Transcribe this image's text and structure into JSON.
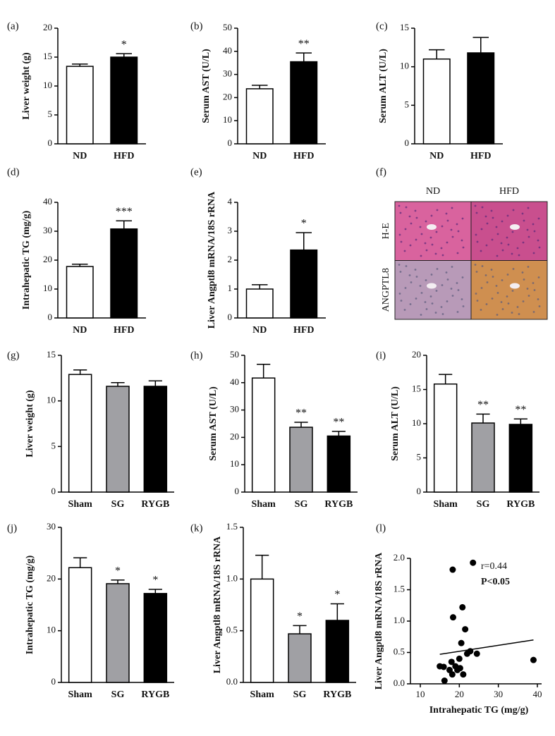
{
  "chart_data": [
    {
      "panel": "(a)",
      "type": "bar",
      "ylabel": "Liver weight (g)",
      "categories": [
        "ND",
        "HFD"
      ],
      "values": [
        13.4,
        15.0
      ],
      "errors": [
        0.4,
        0.6
      ],
      "colors": [
        "#ffffff",
        "#000000"
      ],
      "significance": [
        null,
        "*"
      ],
      "ylim": [
        0,
        20
      ],
      "yticks": [
        0,
        5,
        10,
        15,
        20
      ]
    },
    {
      "panel": "(b)",
      "type": "bar",
      "ylabel": "Serum  AST (U/L)",
      "categories": [
        "ND",
        "HFD"
      ],
      "values": [
        23.8,
        35.5
      ],
      "errors": [
        1.5,
        3.8
      ],
      "colors": [
        "#ffffff",
        "#000000"
      ],
      "significance": [
        null,
        "**"
      ],
      "ylim": [
        0,
        50
      ],
      "yticks": [
        0,
        10,
        20,
        30,
        40,
        50
      ]
    },
    {
      "panel": "(c)",
      "type": "bar",
      "ylabel": "Serum  ALT (U/L)",
      "categories": [
        "ND",
        "HFD"
      ],
      "values": [
        11.0,
        11.8
      ],
      "errors": [
        1.2,
        2.0
      ],
      "colors": [
        "#ffffff",
        "#000000"
      ],
      "significance": [
        null,
        null
      ],
      "ylim": [
        0,
        15
      ],
      "yticks": [
        0,
        5,
        10,
        15
      ]
    },
    {
      "panel": "(d)",
      "type": "bar",
      "ylabel": "Intrahepatic TG (mg/g)",
      "categories": [
        "ND",
        "HFD"
      ],
      "values": [
        17.8,
        30.8
      ],
      "errors": [
        0.8,
        2.8
      ],
      "colors": [
        "#ffffff",
        "#000000"
      ],
      "significance": [
        null,
        "***"
      ],
      "ylim": [
        0,
        40
      ],
      "yticks": [
        0,
        10,
        20,
        30,
        40
      ]
    },
    {
      "panel": "(e)",
      "type": "bar",
      "ylabel": "Liver Angptl8 mRNA/18S rRNA",
      "categories": [
        "ND",
        "HFD"
      ],
      "values": [
        1.0,
        2.35
      ],
      "errors": [
        0.15,
        0.6
      ],
      "colors": [
        "#ffffff",
        "#000000"
      ],
      "significance": [
        null,
        "*"
      ],
      "ylim": [
        0,
        4
      ],
      "yticks": [
        0,
        1,
        2,
        3,
        4
      ]
    },
    {
      "panel": "(f)",
      "type": "image",
      "columns": [
        "ND",
        "HFD"
      ],
      "rows": [
        "H-E",
        "ANGPTL8"
      ]
    },
    {
      "panel": "(g)",
      "type": "bar",
      "ylabel": "Liver weight (g)",
      "categories": [
        "Sham",
        "SG",
        "RYGB"
      ],
      "values": [
        12.9,
        11.6,
        11.6
      ],
      "errors": [
        0.5,
        0.4,
        0.6
      ],
      "colors": [
        "#ffffff",
        "#a0a0a4",
        "#000000"
      ],
      "significance": [
        null,
        null,
        null
      ],
      "ylim": [
        0,
        15
      ],
      "yticks": [
        0,
        5,
        10,
        15
      ]
    },
    {
      "panel": "(h)",
      "type": "bar",
      "ylabel": "Serum  AST (U/L)",
      "categories": [
        "Sham",
        "SG",
        "RYGB"
      ],
      "values": [
        41.7,
        23.7,
        20.5
      ],
      "errors": [
        5.0,
        1.8,
        1.7
      ],
      "colors": [
        "#ffffff",
        "#a0a0a4",
        "#000000"
      ],
      "significance": [
        null,
        "**",
        "**"
      ],
      "ylim": [
        0,
        50
      ],
      "yticks": [
        0,
        10,
        20,
        30,
        40,
        50
      ]
    },
    {
      "panel": "(i)",
      "type": "bar",
      "ylabel": "Serum  ALT (U/L)",
      "categories": [
        "Sham",
        "SG",
        "RYGB"
      ],
      "values": [
        15.8,
        10.1,
        9.9
      ],
      "errors": [
        1.4,
        1.3,
        0.8
      ],
      "colors": [
        "#ffffff",
        "#a0a0a4",
        "#000000"
      ],
      "significance": [
        null,
        "**",
        "**"
      ],
      "ylim": [
        0,
        20
      ],
      "yticks": [
        0,
        5,
        10,
        15,
        20
      ]
    },
    {
      "panel": "(j)",
      "type": "bar",
      "ylabel": "Intrahepatic TG (mg/g)",
      "categories": [
        "Sham",
        "SG",
        "RYGB"
      ],
      "values": [
        22.2,
        19.1,
        17.2
      ],
      "errors": [
        1.9,
        0.7,
        0.8
      ],
      "colors": [
        "#ffffff",
        "#a0a0a4",
        "#000000"
      ],
      "significance": [
        null,
        "*",
        "*"
      ],
      "ylim": [
        0,
        30
      ],
      "yticks": [
        0,
        10,
        20,
        30
      ]
    },
    {
      "panel": "(k)",
      "type": "bar",
      "ylabel": "Liver Angptl8 mRNA/18S rRNA",
      "categories": [
        "Sham",
        "SG",
        "RYGB"
      ],
      "values": [
        1.0,
        0.47,
        0.6
      ],
      "errors": [
        0.23,
        0.08,
        0.16
      ],
      "colors": [
        "#ffffff",
        "#a0a0a4",
        "#000000"
      ],
      "significance": [
        null,
        "*",
        "*"
      ],
      "ylim": [
        0,
        1.5
      ],
      "yticks": [
        {
          "value": 0,
          "label": "0.0"
        },
        {
          "value": 0.5,
          "label": "0.5"
        },
        {
          "value": 1,
          "label": "1.0"
        },
        {
          "value": 1.5,
          "label": "1.5"
        }
      ]
    },
    {
      "panel": "(l)",
      "type": "scatter",
      "ylabel": "Liver Angptl8 mRNA/18S rRNA",
      "xlabel": "Intrahepatic TG (mg/g)",
      "x": [
        15.0,
        16.2,
        17.5,
        18.2,
        18.0,
        18.4,
        19.0,
        19.5,
        20.0,
        20.5,
        20.2,
        21.0,
        21.5,
        22.0,
        22.8,
        23.5,
        24.5,
        39.0,
        18.3,
        20.8,
        16.0
      ],
      "y": [
        0.28,
        0.05,
        0.22,
        0.15,
        0.35,
        1.06,
        0.28,
        0.22,
        0.4,
        0.65,
        0.25,
        0.15,
        0.87,
        0.48,
        0.52,
        1.93,
        0.48,
        0.38,
        1.82,
        1.22,
        0.27
      ],
      "color": "#000000",
      "trendline": {
        "x": [
          15,
          39
        ],
        "y": [
          0.47,
          0.7
        ]
      },
      "annotations": [
        "r=0.44",
        "P<0.05"
      ],
      "xlim": [
        10,
        40
      ],
      "xticks": [
        10,
        20,
        30,
        40
      ],
      "ylim": [
        0,
        2
      ],
      "yticks": [
        {
          "value": 0,
          "label": "0.0"
        },
        {
          "value": 0.5,
          "label": "0.5"
        },
        {
          "value": 1,
          "label": "1.0"
        },
        {
          "value": 1.5,
          "label": "1.5"
        },
        {
          "value": 2,
          "label": "2.0"
        }
      ]
    }
  ]
}
